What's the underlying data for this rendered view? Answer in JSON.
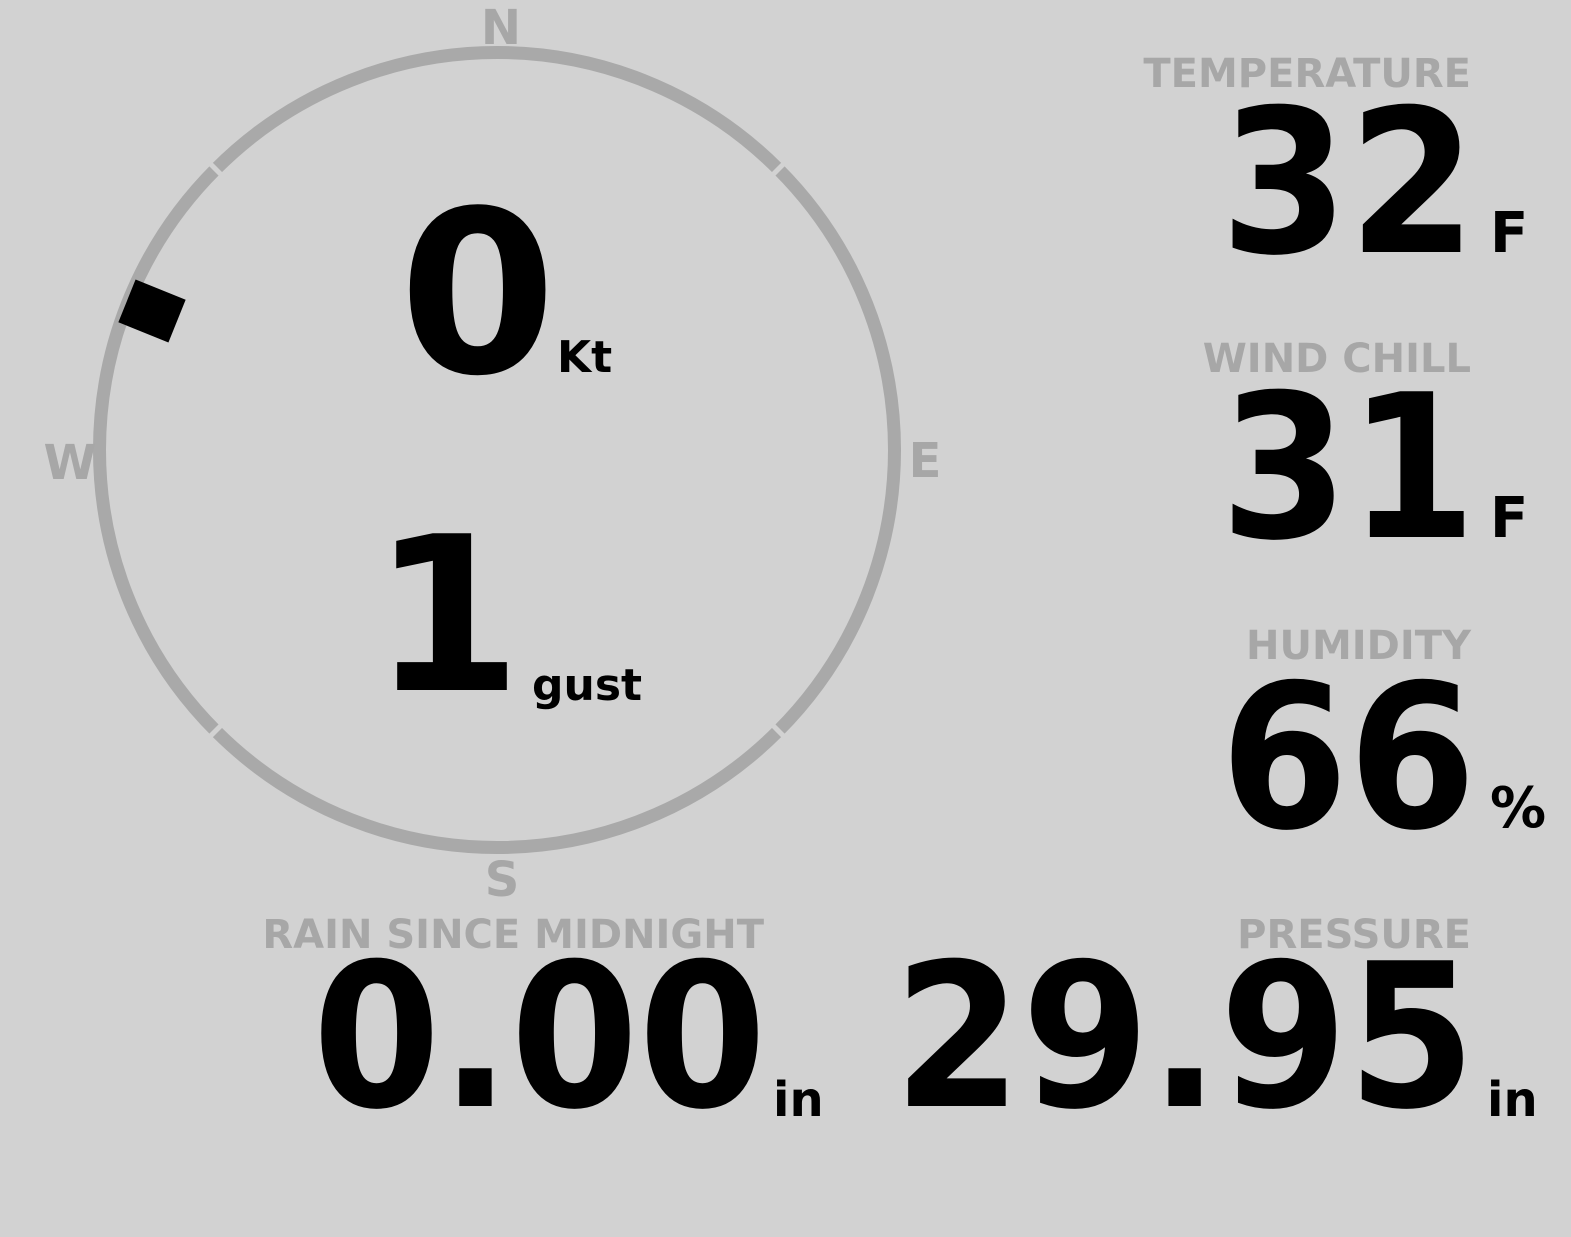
{
  "colors": {
    "background": "#d2d2d2",
    "muted_text": "#a7a7a7",
    "compass_ring": "#a9a9a9",
    "value_text": "#000000"
  },
  "compass": {
    "cardinals": {
      "north": "N",
      "east": "E",
      "south": "S",
      "west": "W"
    },
    "speed": {
      "value": "0",
      "unit": "Kt"
    },
    "gust": {
      "value": "1",
      "unit": "gust"
    },
    "direction_marker_bearing_deg": 292
  },
  "metrics": {
    "temperature": {
      "label": "TEMPERATURE",
      "value": "32",
      "unit": "F"
    },
    "wind_chill": {
      "label": "WIND CHILL",
      "value": "31",
      "unit": "F"
    },
    "humidity": {
      "label": "HUMIDITY",
      "value": "66",
      "unit": "%"
    },
    "pressure": {
      "label": "PRESSURE",
      "value": "29.95",
      "unit": "in"
    },
    "rain_since_midnight": {
      "label": "RAIN SINCE MIDNIGHT",
      "value": "0.00",
      "unit": "in"
    }
  }
}
